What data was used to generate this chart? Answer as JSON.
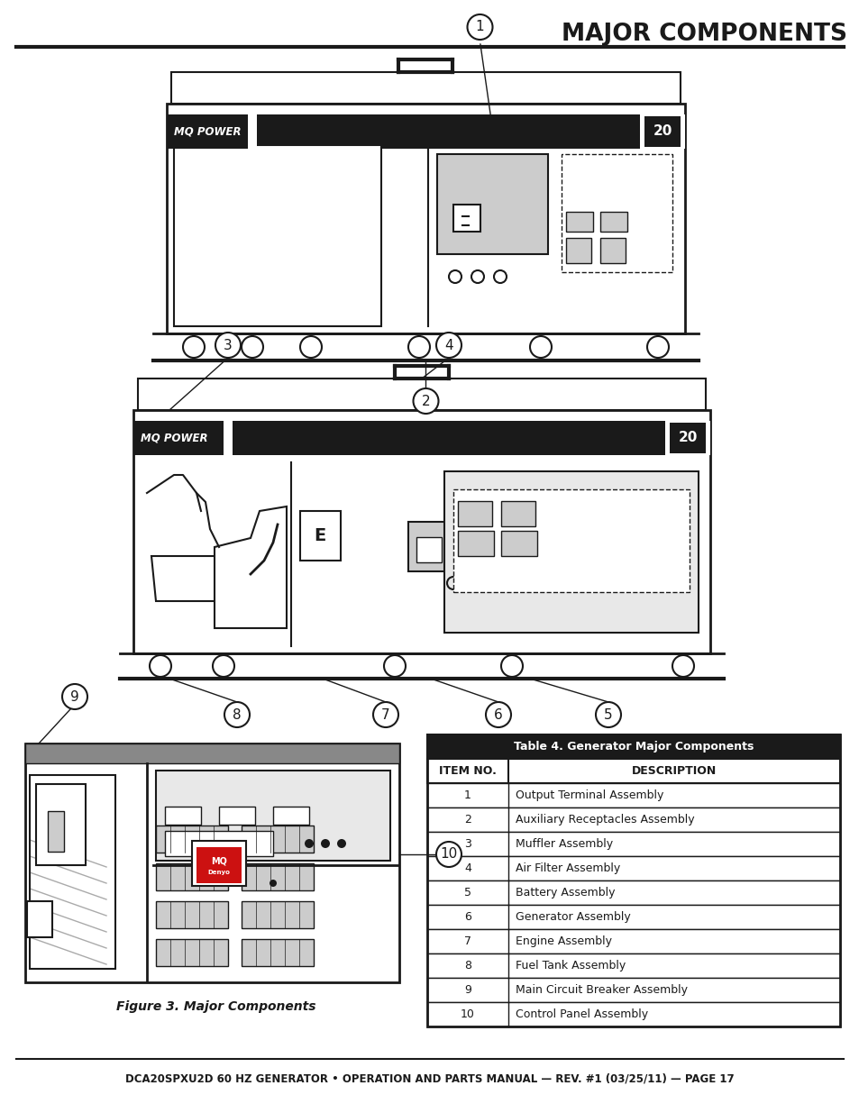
{
  "title": "MAJOR COMPONENTS",
  "footer": "DCA20SPXU2D 60 HZ GENERATOR • OPERATION AND PARTS MANUAL — REV. #1 (03/25/11) — PAGE 17",
  "figure_caption": "Figure 3. Major Components",
  "table_title": "Table 4. Generator Major Components",
  "table_header": [
    "ITEM NO.",
    "DESCRIPTION"
  ],
  "table_rows": [
    [
      "1",
      "Output Terminal Assembly"
    ],
    [
      "2",
      "Auxiliary Receptacles Assembly"
    ],
    [
      "3",
      "Muffler Assembly"
    ],
    [
      "4",
      "Air Filter Assembly"
    ],
    [
      "5",
      "Battery Assembly"
    ],
    [
      "6",
      "Generator Assembly"
    ],
    [
      "7",
      "Engine Assembly"
    ],
    [
      "8",
      "Fuel Tank Assembly"
    ],
    [
      "9",
      "Main Circuit Breaker Assembly"
    ],
    [
      "10",
      "Control Panel Assembly"
    ]
  ],
  "bg_color": "#ffffff",
  "title_color": "#1a1a1a",
  "table_title_bg": "#1a1a1a",
  "table_title_fg": "#ffffff",
  "table_border_color": "#333333",
  "line_color": "#1a1a1a",
  "gray_fill": "#e8e8e8",
  "dark_fill": "#1a1a1a",
  "mid_gray": "#888888",
  "light_gray": "#cccccc"
}
